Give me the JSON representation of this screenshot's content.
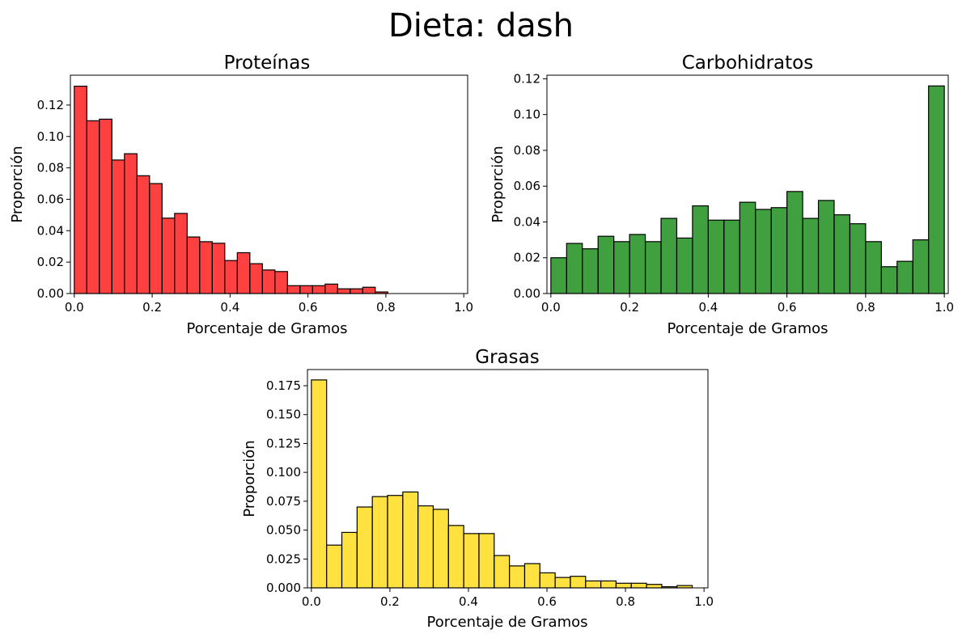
{
  "figure_title": "Dieta: dash",
  "chart_data": [
    {
      "type": "bar",
      "subtype": "histogram",
      "title": "Proteínas",
      "xlabel": "Porcentaje de Gramos",
      "ylabel": "Proporción",
      "color": "#ff0000",
      "bin_width": 0.0322,
      "bin_starts": [
        0.0,
        0.0322,
        0.0644,
        0.0966,
        0.1288,
        0.161,
        0.1932,
        0.2254,
        0.2576,
        0.2898,
        0.322,
        0.3542,
        0.3864,
        0.4186,
        0.4508,
        0.483,
        0.5152,
        0.5474,
        0.5796,
        0.6118,
        0.644,
        0.6762,
        0.7084,
        0.7406,
        0.7728,
        0.805
      ],
      "values": [
        0.132,
        0.11,
        0.111,
        0.085,
        0.089,
        0.075,
        0.07,
        0.048,
        0.051,
        0.036,
        0.033,
        0.032,
        0.021,
        0.026,
        0.019,
        0.015,
        0.014,
        0.005,
        0.005,
        0.005,
        0.006,
        0.003,
        0.003,
        0.004,
        0.001,
        0.0
      ],
      "xlim": [
        -0.01,
        1.01
      ],
      "ylim": [
        0,
        0.139
      ],
      "xticks": [
        "0.0",
        "0.2",
        "0.4",
        "0.6",
        "0.8",
        "1.0"
      ],
      "yticks": [
        "0.00",
        "0.02",
        "0.04",
        "0.06",
        "0.08",
        "0.10",
        "0.12"
      ]
    },
    {
      "type": "bar",
      "subtype": "histogram",
      "title": "Carbohidratos",
      "xlabel": "Porcentaje de Gramos",
      "ylabel": "Proporción",
      "color": "#008000",
      "bin_width": 0.04,
      "bin_starts": [
        0.0,
        0.04,
        0.08,
        0.12,
        0.16,
        0.2,
        0.24,
        0.28,
        0.32,
        0.36,
        0.4,
        0.44,
        0.48,
        0.52,
        0.56,
        0.6,
        0.64,
        0.68,
        0.72,
        0.76,
        0.8,
        0.84,
        0.88,
        0.92,
        0.96
      ],
      "values": [
        0.02,
        0.028,
        0.025,
        0.032,
        0.029,
        0.033,
        0.029,
        0.042,
        0.031,
        0.049,
        0.041,
        0.041,
        0.051,
        0.047,
        0.048,
        0.057,
        0.042,
        0.052,
        0.044,
        0.039,
        0.029,
        0.015,
        0.018,
        0.03,
        0.116
      ],
      "xlim": [
        -0.01,
        1.01
      ],
      "ylim": [
        0,
        0.122
      ],
      "xticks": [
        "0.0",
        "0.2",
        "0.4",
        "0.6",
        "0.8",
        "1.0"
      ],
      "yticks": [
        "0.00",
        "0.02",
        "0.04",
        "0.06",
        "0.08",
        "0.10",
        "0.12"
      ]
    },
    {
      "type": "bar",
      "subtype": "histogram",
      "title": "Grasas",
      "xlabel": "Porcentaje de Gramos",
      "ylabel": "Proporción",
      "color": "#ffd700",
      "bin_width": 0.0388,
      "bin_starts": [
        0.0,
        0.0388,
        0.0776,
        0.1164,
        0.1552,
        0.194,
        0.2328,
        0.2716,
        0.3104,
        0.3492,
        0.388,
        0.4268,
        0.4656,
        0.5044,
        0.5432,
        0.582,
        0.6208,
        0.6596,
        0.6984,
        0.7372,
        0.776,
        0.8148,
        0.8536,
        0.8924,
        0.9312
      ],
      "values": [
        0.18,
        0.037,
        0.048,
        0.07,
        0.079,
        0.08,
        0.083,
        0.071,
        0.068,
        0.054,
        0.047,
        0.047,
        0.028,
        0.019,
        0.021,
        0.013,
        0.009,
        0.01,
        0.006,
        0.006,
        0.004,
        0.004,
        0.003,
        0.001,
        0.002
      ],
      "xlim": [
        -0.01,
        1.01
      ],
      "ylim": [
        0,
        0.189
      ],
      "xticks": [
        "0.0",
        "0.2",
        "0.4",
        "0.6",
        "0.8",
        "1.0"
      ],
      "yticks": [
        "0.000",
        "0.025",
        "0.050",
        "0.075",
        "0.100",
        "0.125",
        "0.150",
        "0.175"
      ]
    }
  ]
}
